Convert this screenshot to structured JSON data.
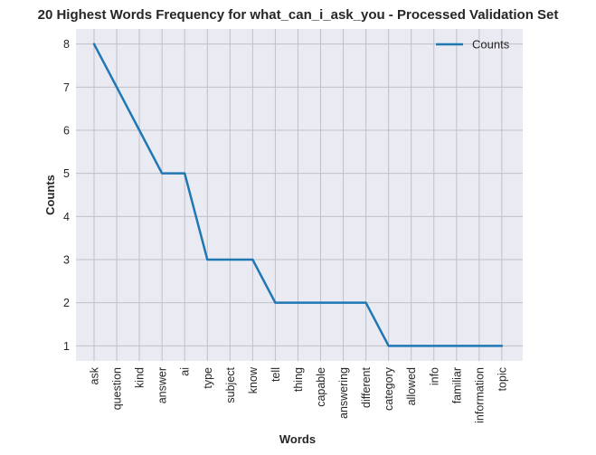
{
  "chart_data": {
    "type": "line",
    "title": "20 Highest Words Frequency for what_can_i_ask_you - Processed Validation Set",
    "xlabel": "Words",
    "ylabel": "Counts",
    "categories": [
      "ask",
      "question",
      "kind",
      "answer",
      "ai",
      "type",
      "subject",
      "know",
      "tell",
      "thing",
      "capable",
      "answering",
      "different",
      "category",
      "allowed",
      "info",
      "familiar",
      "information",
      "topic"
    ],
    "series": [
      {
        "name": "Counts",
        "values": [
          8,
          7,
          6,
          5,
          5,
          3,
          3,
          3,
          2,
          2,
          2,
          2,
          2,
          1,
          1,
          1,
          1,
          1,
          1
        ]
      }
    ],
    "yticks": [
      1,
      2,
      3,
      4,
      5,
      6,
      7,
      8
    ],
    "ylim": [
      0.65,
      8.35
    ],
    "grid": true,
    "legend": "top-right",
    "colors": {
      "line": "#1f77b4",
      "plot_background": "#eaeaf2",
      "grid": "#c0c0c8",
      "text": "#262626"
    }
  }
}
